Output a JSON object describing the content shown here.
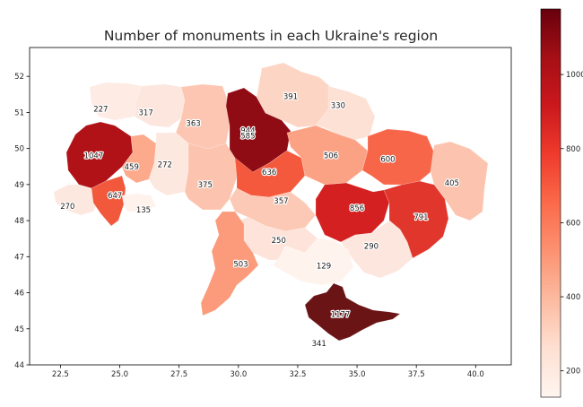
{
  "chart_data": {
    "type": "choropleth",
    "title": "Number of monuments in each Ukraine's region",
    "xlim": [
      21.2,
      41.5
    ],
    "ylim": [
      44.0,
      52.8
    ],
    "x_ticks": [
      "22.5",
      "25.0",
      "27.5",
      "30.0",
      "32.5",
      "35.0",
      "37.5",
      "40.0"
    ],
    "x_tick_values": [
      22.5,
      25.0,
      27.5,
      30.0,
      32.5,
      35.0,
      37.5,
      40.0
    ],
    "y_ticks": [
      "44",
      "45",
      "46",
      "47",
      "48",
      "49",
      "50",
      "51",
      "52"
    ],
    "y_tick_values": [
      44,
      45,
      46,
      47,
      48,
      49,
      50,
      51,
      52
    ],
    "colorbar": {
      "colormap": "Reds",
      "min": 129,
      "max": 1177,
      "ticks": [
        "200",
        "400",
        "600",
        "800",
        "1000"
      ],
      "tick_values": [
        200,
        400,
        600,
        800,
        1000
      ],
      "colors": [
        "#fff5f0",
        "#fee0d2",
        "#fcbba1",
        "#fc9272",
        "#fb6a4a",
        "#ef3b2c",
        "#cb181d",
        "#a50f15",
        "#67000d"
      ]
    },
    "regions": [
      {
        "value": 227,
        "lon": 24.2,
        "lat": 51.1
      },
      {
        "value": 317,
        "lon": 26.1,
        "lat": 51.0
      },
      {
        "value": 363,
        "lon": 28.1,
        "lat": 50.7
      },
      {
        "value": 944,
        "lon": 30.4,
        "lat": 50.5
      },
      {
        "value": 585,
        "lon": 30.4,
        "lat": 50.35
      },
      {
        "value": 391,
        "lon": 32.2,
        "lat": 51.45
      },
      {
        "value": 330,
        "lon": 34.2,
        "lat": 51.2
      },
      {
        "value": 1047,
        "lon": 23.9,
        "lat": 49.8
      },
      {
        "value": 459,
        "lon": 25.5,
        "lat": 49.5
      },
      {
        "value": 272,
        "lon": 26.9,
        "lat": 49.55
      },
      {
        "value": 375,
        "lon": 28.6,
        "lat": 49.0
      },
      {
        "value": 636,
        "lon": 31.3,
        "lat": 49.35
      },
      {
        "value": 506,
        "lon": 33.9,
        "lat": 49.8
      },
      {
        "value": 600,
        "lon": 36.3,
        "lat": 49.7
      },
      {
        "value": 405,
        "lon": 39.0,
        "lat": 49.05
      },
      {
        "value": 270,
        "lon": 22.8,
        "lat": 48.4
      },
      {
        "value": 647,
        "lon": 24.8,
        "lat": 48.7
      },
      {
        "value": 135,
        "lon": 26.0,
        "lat": 48.3
      },
      {
        "value": 357,
        "lon": 31.8,
        "lat": 48.55
      },
      {
        "value": 856,
        "lon": 35.0,
        "lat": 48.35
      },
      {
        "value": 791,
        "lon": 37.7,
        "lat": 48.1
      },
      {
        "value": 250,
        "lon": 31.7,
        "lat": 47.45
      },
      {
        "value": 290,
        "lon": 35.6,
        "lat": 47.3
      },
      {
        "value": 129,
        "lon": 33.6,
        "lat": 46.75
      },
      {
        "value": 503,
        "lon": 30.1,
        "lat": 46.8
      },
      {
        "value": 1177,
        "lon": 34.3,
        "lat": 45.4
      },
      {
        "value": 341,
        "lon": 33.4,
        "lat": 44.6
      }
    ]
  }
}
